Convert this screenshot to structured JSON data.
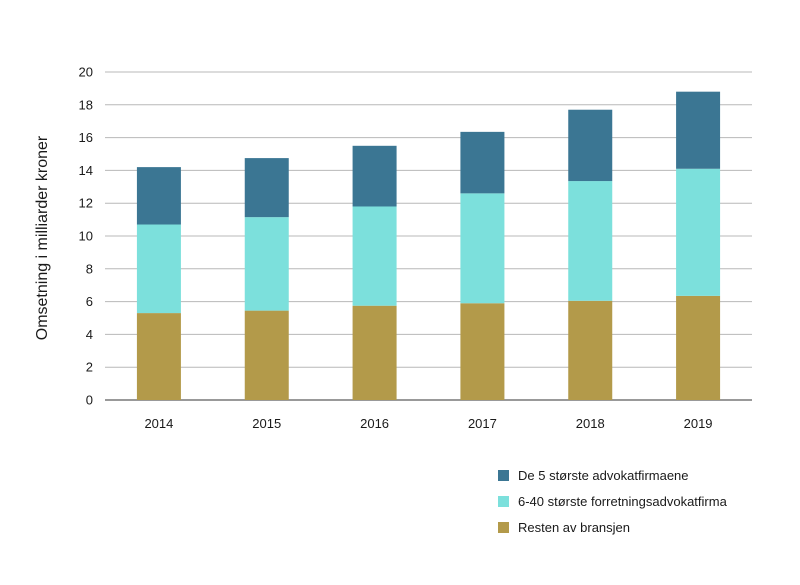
{
  "chart_data": {
    "type": "bar",
    "stacked": true,
    "title": "",
    "xlabel": "",
    "ylabel": "Omsetning i milliarder kroner",
    "ylim": [
      0,
      20
    ],
    "yticks": [
      0,
      2,
      4,
      6,
      8,
      10,
      12,
      14,
      16,
      18,
      20
    ],
    "grid": true,
    "legend_position": "bottom-right",
    "categories": [
      "2014",
      "2015",
      "2016",
      "2017",
      "2018",
      "2019"
    ],
    "series": [
      {
        "name": "Resten av bransjen",
        "color": "#b39a4a",
        "values": [
          5.3,
          5.45,
          5.75,
          5.9,
          6.05,
          6.35
        ]
      },
      {
        "name": "6-40 største forretningsadvokatfirma",
        "color": "#7ce0dc",
        "values": [
          5.4,
          5.7,
          6.05,
          6.7,
          7.3,
          7.75
        ]
      },
      {
        "name": "De 5 største advokatfirmaene",
        "color": "#3b7693",
        "values": [
          3.5,
          3.6,
          3.7,
          3.75,
          4.35,
          4.7
        ]
      }
    ],
    "legend_order": [
      2,
      1,
      0
    ]
  }
}
